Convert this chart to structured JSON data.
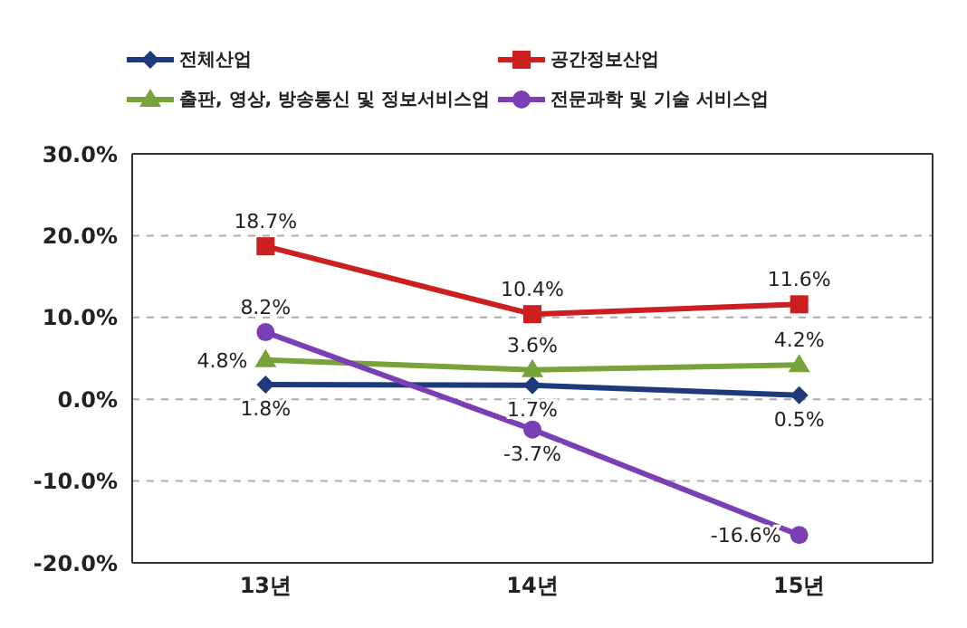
{
  "chart_data": {
    "type": "line",
    "categories": [
      "13년",
      "14년",
      "15년"
    ],
    "series": [
      {
        "name": "전체산업",
        "color": "#1f3a7a",
        "marker": "diamond",
        "values": [
          1.8,
          1.7,
          0.5
        ],
        "value_labels": [
          "1.8%",
          "1.7%",
          "0.5%"
        ]
      },
      {
        "name": "공간정보산업",
        "color": "#cc1f1f",
        "marker": "square",
        "values": [
          18.7,
          10.4,
          11.6
        ],
        "value_labels": [
          "18.7%",
          "10.4%",
          "11.6%"
        ]
      },
      {
        "name": "출판, 영상, 방송통신 및 정보서비스업",
        "color": "#77a33a",
        "marker": "triangle",
        "values": [
          4.8,
          3.6,
          4.2
        ],
        "value_labels": [
          "4.8%",
          "3.6%",
          "4.2%"
        ]
      },
      {
        "name": "전문과학 및 기술 서비스업",
        "color": "#7b3fb5",
        "marker": "circle",
        "values": [
          8.2,
          -3.7,
          -16.6
        ],
        "value_labels": [
          "8.2%",
          "-3.7%",
          "-16.6%"
        ]
      }
    ],
    "ylim": [
      -20,
      30
    ],
    "yticks": [
      {
        "value": -20,
        "label": "-20.0%"
      },
      {
        "value": -10,
        "label": "-10.0%"
      },
      {
        "value": 0,
        "label": "0.0%"
      },
      {
        "value": 10,
        "label": "10.0%"
      },
      {
        "value": 20,
        "label": "20.0%"
      },
      {
        "value": 30,
        "label": "30.0%"
      }
    ],
    "grid": "y",
    "legend": "top",
    "line_style": "solid"
  }
}
